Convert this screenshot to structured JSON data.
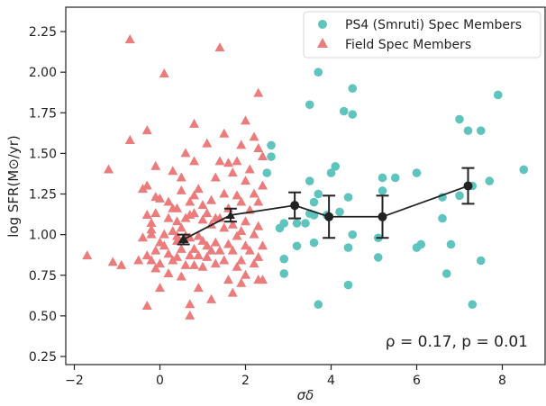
{
  "chart_data": {
    "type": "scatter",
    "xlabel": "σδ",
    "ylabel": "log SFR(M⊙/yr)",
    "xlim": [
      -2.2,
      9.0
    ],
    "ylim": [
      0.2,
      2.4
    ],
    "xticks": [
      -2,
      0,
      2,
      4,
      6,
      8
    ],
    "xtick_labels": [
      "−2",
      "0",
      "2",
      "4",
      "6",
      "8"
    ],
    "yticks": [
      0.25,
      0.5,
      0.75,
      1.0,
      1.25,
      1.5,
      1.75,
      2.0,
      2.25
    ],
    "ytick_labels": [
      "0.25",
      "0.50",
      "0.75",
      "1.00",
      "1.25",
      "1.50",
      "1.75",
      "2.00",
      "2.25"
    ],
    "grid": false,
    "legend_position": "top-right",
    "annotation": "ρ = 0.17, p = 0.01",
    "colors": {
      "ps4": "#5ec4bd",
      "field": "#ec7c7c",
      "trend": "#222222"
    },
    "series": [
      {
        "name": "PS4 (Smruti) Spec Members",
        "marker": "circle",
        "color": "#5ec4bd",
        "points": [
          [
            2.6,
            1.55
          ],
          [
            2.6,
            1.48
          ],
          [
            2.5,
            1.38
          ],
          [
            3.7,
            2.0
          ],
          [
            3.5,
            1.8
          ],
          [
            4.3,
            1.76
          ],
          [
            4.5,
            1.9
          ],
          [
            4.5,
            1.74
          ],
          [
            4.1,
            1.42
          ],
          [
            4.0,
            1.38
          ],
          [
            3.5,
            1.33
          ],
          [
            3.7,
            1.25
          ],
          [
            3.6,
            1.2
          ],
          [
            3.5,
            1.13
          ],
          [
            3.4,
            1.07
          ],
          [
            3.2,
            1.07
          ],
          [
            3.2,
            0.93
          ],
          [
            3.6,
            0.95
          ],
          [
            2.8,
            1.04
          ],
          [
            2.9,
            1.07
          ],
          [
            2.9,
            0.85
          ],
          [
            2.9,
            0.76
          ],
          [
            3.6,
            1.12
          ],
          [
            3.9,
            1.12
          ],
          [
            4.4,
            1.23
          ],
          [
            4.2,
            1.14
          ],
          [
            4.5,
            1.0
          ],
          [
            4.4,
            0.92
          ],
          [
            4.4,
            0.69
          ],
          [
            3.7,
            0.57
          ],
          [
            5.2,
            1.35
          ],
          [
            5.2,
            1.27
          ],
          [
            5.5,
            1.35
          ],
          [
            5.1,
            0.98
          ],
          [
            5.1,
            0.86
          ],
          [
            6.0,
            1.38
          ],
          [
            6.1,
            0.94
          ],
          [
            6.0,
            0.92
          ],
          [
            6.6,
            1.23
          ],
          [
            6.6,
            1.1
          ],
          [
            6.8,
            0.94
          ],
          [
            6.7,
            0.76
          ],
          [
            7.0,
            1.71
          ],
          [
            7.0,
            1.24
          ],
          [
            7.2,
            1.64
          ],
          [
            7.5,
            1.64
          ],
          [
            7.3,
            1.3
          ],
          [
            7.7,
            1.33
          ],
          [
            7.5,
            0.84
          ],
          [
            7.3,
            0.57
          ],
          [
            7.9,
            1.86
          ],
          [
            8.5,
            1.4
          ]
        ]
      },
      {
        "name": "Field Spec Members",
        "marker": "triangle",
        "color": "#ec7c7c",
        "points": [
          [
            -1.7,
            0.87
          ],
          [
            -1.2,
            1.4
          ],
          [
            -1.1,
            0.83
          ],
          [
            -0.9,
            0.81
          ],
          [
            -0.7,
            2.2
          ],
          [
            -0.7,
            1.58
          ],
          [
            -0.5,
            0.84
          ],
          [
            -0.4,
            1.28
          ],
          [
            -0.4,
            0.98
          ],
          [
            -0.3,
            1.64
          ],
          [
            -0.3,
            1.3
          ],
          [
            -0.2,
            0.84
          ],
          [
            -0.2,
            1.0
          ],
          [
            -0.2,
            1.07
          ],
          [
            -0.3,
            1.12
          ],
          [
            -0.1,
            1.42
          ],
          [
            -0.1,
            1.23
          ],
          [
            -0.1,
            0.9
          ],
          [
            -0.1,
            0.79
          ],
          [
            0.0,
            0.82
          ],
          [
            0.0,
            1.22
          ],
          [
            0.0,
            0.95
          ],
          [
            -0.2,
            1.03
          ],
          [
            -0.1,
            1.13
          ],
          [
            -0.3,
            0.87
          ],
          [
            -0.3,
            0.56
          ],
          [
            0.0,
            0.67
          ],
          [
            0.1,
            1.99
          ],
          [
            0.1,
            1.0
          ],
          [
            0.1,
            0.93
          ],
          [
            0.2,
            1.2
          ],
          [
            0.2,
            1.1
          ],
          [
            0.2,
            0.88
          ],
          [
            0.2,
            0.76
          ],
          [
            0.3,
            1.16
          ],
          [
            0.3,
            1.39
          ],
          [
            0.3,
            1.02
          ],
          [
            0.3,
            0.84
          ],
          [
            0.4,
            1.16
          ],
          [
            0.4,
            1.08
          ],
          [
            0.4,
            0.99
          ],
          [
            0.4,
            0.96
          ],
          [
            0.4,
            0.86
          ],
          [
            0.5,
            1.35
          ],
          [
            0.5,
            1.27
          ],
          [
            0.5,
            1.04
          ],
          [
            0.5,
            0.91
          ],
          [
            0.5,
            0.74
          ],
          [
            0.6,
            1.5
          ],
          [
            0.6,
            1.1
          ],
          [
            0.6,
            0.99
          ],
          [
            0.6,
            0.81
          ],
          [
            0.7,
            1.2
          ],
          [
            0.7,
            1.12
          ],
          [
            0.7,
            0.98
          ],
          [
            0.7,
            0.87
          ],
          [
            0.7,
            0.57
          ],
          [
            0.7,
            0.5
          ],
          [
            0.8,
            1.68
          ],
          [
            0.8,
            1.45
          ],
          [
            0.8,
            1.24
          ],
          [
            0.8,
            1.13
          ],
          [
            0.8,
            0.91
          ],
          [
            0.8,
            0.81
          ],
          [
            0.9,
            1.28
          ],
          [
            0.9,
            0.99
          ],
          [
            0.9,
            0.87
          ],
          [
            0.9,
            0.67
          ],
          [
            1.0,
            1.18
          ],
          [
            1.0,
            1.09
          ],
          [
            1.0,
            0.96
          ],
          [
            1.0,
            0.8
          ],
          [
            1.1,
            1.56
          ],
          [
            1.1,
            1.13
          ],
          [
            1.1,
            0.93
          ],
          [
            1.1,
            0.86
          ],
          [
            1.2,
            1.06
          ],
          [
            1.2,
            1.21
          ],
          [
            1.2,
            0.9
          ],
          [
            1.2,
            0.6
          ],
          [
            1.3,
            1.35
          ],
          [
            1.3,
            1.1
          ],
          [
            1.3,
            0.95
          ],
          [
            1.3,
            0.82
          ],
          [
            1.4,
            1.45
          ],
          [
            1.4,
            2.15
          ],
          [
            1.4,
            1.1
          ],
          [
            1.4,
            0.9
          ],
          [
            1.5,
            1.62
          ],
          [
            1.5,
            1.25
          ],
          [
            1.5,
            1.04
          ],
          [
            1.5,
            0.84
          ],
          [
            1.6,
            1.44
          ],
          [
            1.6,
            1.16
          ],
          [
            1.6,
            0.94
          ],
          [
            1.6,
            0.72
          ],
          [
            1.7,
            1.38
          ],
          [
            1.7,
            1.06
          ],
          [
            1.7,
            0.9
          ],
          [
            1.7,
            0.64
          ],
          [
            1.8,
            1.45
          ],
          [
            1.8,
            1.24
          ],
          [
            1.8,
            0.99
          ],
          [
            1.8,
            0.8
          ],
          [
            1.9,
            1.55
          ],
          [
            1.9,
            1.2
          ],
          [
            1.9,
            1.02
          ],
          [
            1.9,
            0.84
          ],
          [
            1.9,
            0.7
          ],
          [
            2.0,
            1.7
          ],
          [
            2.0,
            1.33
          ],
          [
            2.0,
            1.08
          ],
          [
            2.0,
            0.93
          ],
          [
            2.0,
            0.75
          ],
          [
            2.1,
            1.4
          ],
          [
            2.1,
            1.15
          ],
          [
            2.1,
            0.9
          ],
          [
            2.2,
            1.6
          ],
          [
            2.2,
            1.25
          ],
          [
            2.2,
            1.0
          ],
          [
            2.2,
            0.82
          ],
          [
            2.3,
            1.87
          ],
          [
            2.3,
            1.53
          ],
          [
            2.3,
            1.2
          ],
          [
            2.3,
            1.05
          ],
          [
            2.3,
            0.86
          ],
          [
            2.3,
            0.72
          ],
          [
            2.4,
            1.48
          ],
          [
            2.4,
            1.3
          ],
          [
            2.4,
            0.93
          ],
          [
            2.4,
            0.72
          ]
        ]
      }
    ],
    "trend": {
      "marker": "circle",
      "x": [
        0.55,
        1.65,
        3.15,
        3.95,
        5.2,
        7.2
      ],
      "y": [
        0.97,
        1.12,
        1.18,
        1.11,
        1.11,
        1.3
      ],
      "yerr": [
        0.03,
        0.04,
        0.08,
        0.13,
        0.13,
        0.11
      ]
    }
  }
}
